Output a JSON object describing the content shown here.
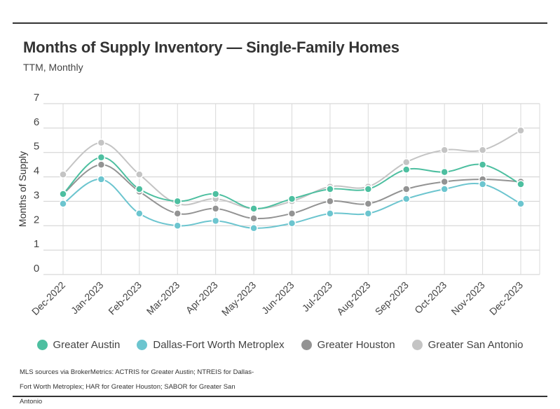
{
  "chart_data": {
    "type": "line",
    "title": "Months of Supply Inventory — Single-Family Homes",
    "subtitle": "TTM, Monthly",
    "ylabel": "Months of Supply",
    "xlabel": "",
    "ylim": [
      0,
      7
    ],
    "yticks": [
      "0",
      "1",
      "2",
      "3",
      "4",
      "5",
      "6",
      "7"
    ],
    "categories": [
      "Dec-2022",
      "Jan-2023",
      "Feb-2023",
      "Mar-2023",
      "Apr-2023",
      "May-2023",
      "Jun-2023",
      "Jul-2023",
      "Aug-2023",
      "Sep-2023",
      "Oct-2023",
      "Nov-2023",
      "Dec-2023"
    ],
    "grid": true,
    "legend_position": "bottom",
    "series": [
      {
        "name": "Greater Austin",
        "color": "#4dbfa0",
        "values": [
          3.3,
          4.8,
          3.5,
          3.0,
          3.3,
          2.7,
          3.1,
          3.5,
          3.5,
          4.3,
          4.2,
          4.5,
          3.7
        ]
      },
      {
        "name": "Dallas-Fort Worth Metroplex",
        "color": "#6cc5cf",
        "values": [
          2.9,
          3.9,
          2.5,
          2.0,
          2.2,
          1.9,
          2.1,
          2.5,
          2.5,
          3.1,
          3.5,
          3.7,
          2.9
        ]
      },
      {
        "name": "Greater Houston",
        "color": "#939393",
        "values": [
          3.3,
          4.5,
          3.4,
          2.5,
          2.7,
          2.3,
          2.5,
          3.0,
          2.9,
          3.5,
          3.8,
          3.9,
          3.8
        ]
      },
      {
        "name": "Greater San Antonio",
        "color": "#c4c4c4",
        "values": [
          4.1,
          5.4,
          4.1,
          2.9,
          3.1,
          2.7,
          3.0,
          3.6,
          3.6,
          4.6,
          5.1,
          5.1,
          5.9
        ]
      }
    ],
    "source_note": "MLS sources via BrokerMetrics: ACTRIS for Greater Austin; NTREIS for Dallas-Fort Worth Metroplex; HAR for Greater Houston; SABOR for Greater San Antonio"
  }
}
